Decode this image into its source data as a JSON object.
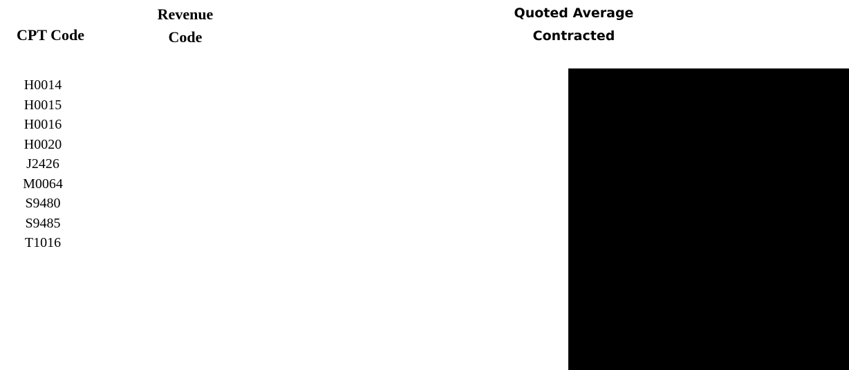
{
  "headers": {
    "cpt_code": "CPT Code",
    "revenue_code": [
      "Revenue",
      "Code"
    ],
    "quoted_average": [
      "Quoted Average",
      "Contracted"
    ]
  },
  "cpt_codes": [
    "H0014",
    "H0015",
    "H0016",
    "H0020",
    "J2426",
    "M0064",
    "S9480",
    "S9485",
    "T1016"
  ],
  "redaction_color": "#000000"
}
